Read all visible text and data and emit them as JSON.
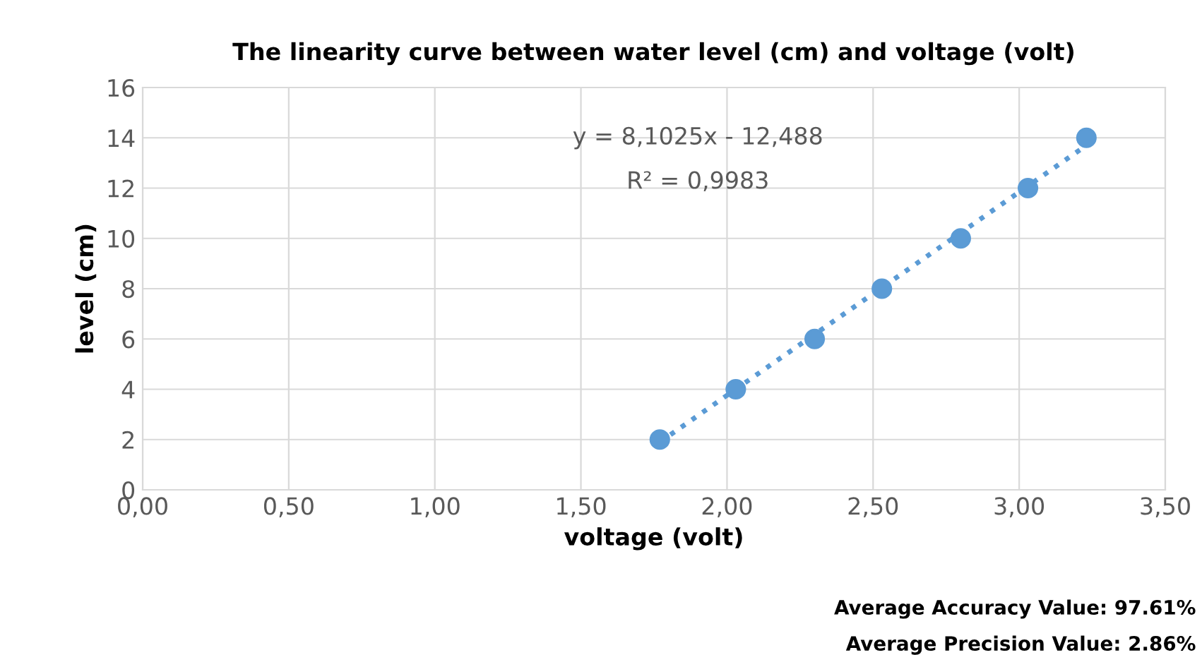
{
  "chart_data": {
    "type": "scatter",
    "title": "The linearity curve between water level (cm) and voltage (volt)",
    "xlabel": "voltage (volt)",
    "ylabel": "level (cm)",
    "x": [
      1.77,
      2.03,
      2.3,
      2.53,
      2.8,
      3.03,
      3.23
    ],
    "series": [
      {
        "color": "#5b9bd5",
        "values": [
          2,
          4,
          6,
          8,
          10,
          12,
          14
        ],
        "marker": "circle"
      },
      {
        "type": "line",
        "color": "#5b9bd5",
        "x": [
          1.77,
          3.23
        ],
        "values": [
          1.9,
          13.7
        ],
        "line_style": "dotted",
        "marker": "none"
      }
    ],
    "xlim": [
      0,
      3.5
    ],
    "xticks": [
      {
        "value": 0,
        "label": "0,00"
      },
      {
        "value": 0.5,
        "label": "0,50"
      },
      {
        "value": 1,
        "label": "1,00"
      },
      {
        "value": 1.5,
        "label": "1,50"
      },
      {
        "value": 2,
        "label": "2,00"
      },
      {
        "value": 2.5,
        "label": "2,50"
      },
      {
        "value": 3,
        "label": "3,00"
      },
      {
        "value": 3.5,
        "label": "3,50"
      }
    ],
    "ylim": [
      0,
      16
    ],
    "yticks": [
      0,
      2,
      4,
      6,
      8,
      10,
      12,
      14,
      16
    ],
    "grid": true,
    "legend": false,
    "annotations": [
      "y = 8,1025x - 12,488",
      "R² = 0,9983",
      "Average Accuracy Value: 97.61%",
      "Average Precision Value: 2.86%"
    ]
  }
}
